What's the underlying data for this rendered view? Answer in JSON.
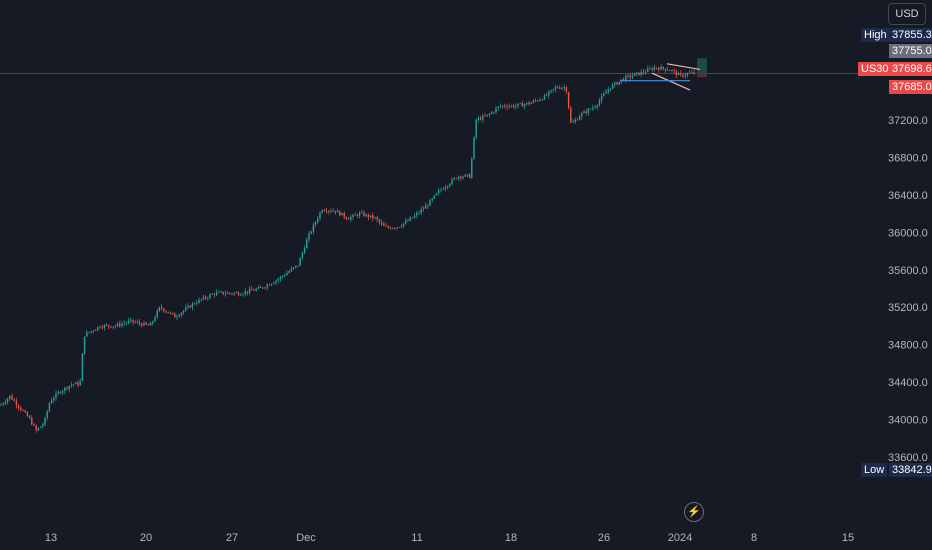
{
  "chart_data": {
    "type": "candlestick",
    "currency": "USD",
    "symbol": "US30",
    "price_axis": {
      "min": 33400,
      "max": 37900,
      "ticks": [
        "33600.0",
        "34000.0",
        "34400.0",
        "34800.0",
        "35200.0",
        "35600.0",
        "36000.0",
        "36400.0",
        "36800.0",
        "37200.0"
      ]
    },
    "time_axis": {
      "labels": [
        "13",
        "20",
        "27",
        "Dec",
        "11",
        "18",
        "26",
        "2024",
        "8",
        "15"
      ]
    },
    "markers": {
      "high": {
        "label": "High",
        "value": "37855.3"
      },
      "high_close": {
        "value": "37755.0"
      },
      "last": {
        "label": "US30",
        "value": "37698.6"
      },
      "low_line": {
        "value": "37685.0"
      },
      "low": {
        "label": "Low",
        "value": "33842.9"
      }
    },
    "price_path": [
      {
        "x": 0,
        "p": 34150
      },
      {
        "x": 10,
        "p": 34250
      },
      {
        "x": 22,
        "p": 34100
      },
      {
        "x": 30,
        "p": 34000
      },
      {
        "x": 36,
        "p": 33880
      },
      {
        "x": 44,
        "p": 33960
      },
      {
        "x": 50,
        "p": 34200
      },
      {
        "x": 60,
        "p": 34300
      },
      {
        "x": 72,
        "p": 34380
      },
      {
        "x": 80,
        "p": 34380
      },
      {
        "x": 84,
        "p": 34900
      },
      {
        "x": 100,
        "p": 35000
      },
      {
        "x": 115,
        "p": 35000
      },
      {
        "x": 130,
        "p": 35050
      },
      {
        "x": 150,
        "p": 35000
      },
      {
        "x": 160,
        "p": 35200
      },
      {
        "x": 175,
        "p": 35100
      },
      {
        "x": 195,
        "p": 35250
      },
      {
        "x": 215,
        "p": 35350
      },
      {
        "x": 240,
        "p": 35350
      },
      {
        "x": 260,
        "p": 35400
      },
      {
        "x": 278,
        "p": 35500
      },
      {
        "x": 298,
        "p": 35650
      },
      {
        "x": 308,
        "p": 35950
      },
      {
        "x": 322,
        "p": 36250
      },
      {
        "x": 335,
        "p": 36230
      },
      {
        "x": 348,
        "p": 36150
      },
      {
        "x": 360,
        "p": 36200
      },
      {
        "x": 375,
        "p": 36150
      },
      {
        "x": 385,
        "p": 36050
      },
      {
        "x": 398,
        "p": 36060
      },
      {
        "x": 412,
        "p": 36150
      },
      {
        "x": 428,
        "p": 36300
      },
      {
        "x": 440,
        "p": 36450
      },
      {
        "x": 458,
        "p": 36600
      },
      {
        "x": 470,
        "p": 36600
      },
      {
        "x": 476,
        "p": 37200
      },
      {
        "x": 488,
        "p": 37250
      },
      {
        "x": 500,
        "p": 37350
      },
      {
        "x": 515,
        "p": 37350
      },
      {
        "x": 530,
        "p": 37380
      },
      {
        "x": 545,
        "p": 37450
      },
      {
        "x": 556,
        "p": 37550
      },
      {
        "x": 566,
        "p": 37550
      },
      {
        "x": 571,
        "p": 37150
      },
      {
        "x": 580,
        "p": 37250
      },
      {
        "x": 595,
        "p": 37350
      },
      {
        "x": 610,
        "p": 37550
      },
      {
        "x": 625,
        "p": 37650
      },
      {
        "x": 640,
        "p": 37700
      },
      {
        "x": 655,
        "p": 37760
      },
      {
        "x": 670,
        "p": 37740
      },
      {
        "x": 680,
        "p": 37670
      },
      {
        "x": 690,
        "p": 37700
      },
      {
        "x": 695,
        "p": 37698
      }
    ],
    "grid": false
  }
}
